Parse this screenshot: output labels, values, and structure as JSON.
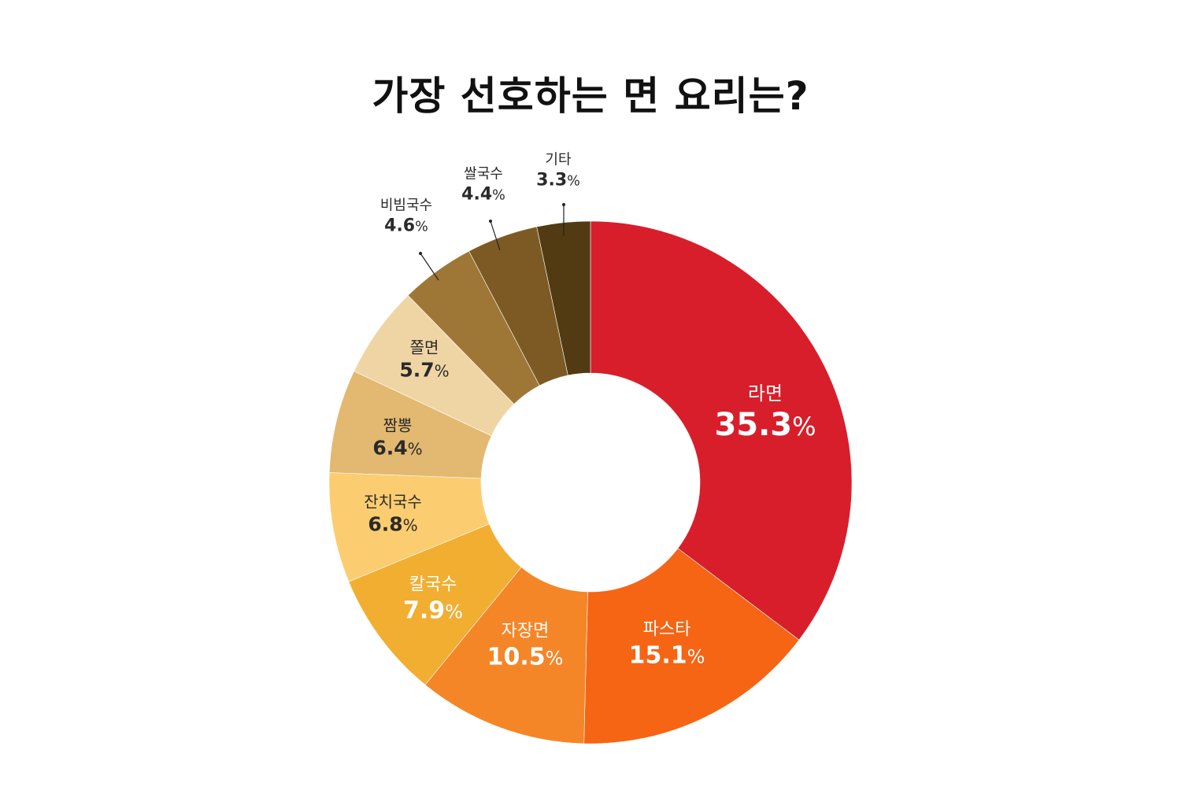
{
  "title": "가장 선호하는 면 요리는?",
  "chart_data": {
    "type": "pie",
    "subtype": "donut",
    "title": "가장 선호하는 면 요리는?",
    "unit": "%",
    "start_angle": "12 o'clock, clockwise",
    "categories": [
      "라면",
      "파스타",
      "자장면",
      "칼국수",
      "잔치국수",
      "짬뽕",
      "쫄면",
      "비빔국수",
      "쌀국수",
      "기타"
    ],
    "values": [
      35.3,
      15.1,
      10.5,
      7.9,
      6.8,
      6.4,
      5.7,
      4.6,
      4.4,
      3.3
    ],
    "colors": [
      "#d81e2a",
      "#f56514",
      "#f58628",
      "#f1ae31",
      "#fccd70",
      "#e3b870",
      "#f0d5a4",
      "#9e7737",
      "#7d5a24",
      "#523b12"
    ],
    "legend": "none (direct labels)"
  },
  "labels": [
    {
      "name": "라면",
      "value": "35.3",
      "pct": "%"
    },
    {
      "name": "파스타",
      "value": "15.1",
      "pct": "%"
    },
    {
      "name": "자장면",
      "value": "10.5",
      "pct": "%"
    },
    {
      "name": "칼국수",
      "value": "7.9",
      "pct": "%"
    },
    {
      "name": "잔치국수",
      "value": "6.8",
      "pct": "%"
    },
    {
      "name": "짬뽕",
      "value": "6.4",
      "pct": "%"
    },
    {
      "name": "쫄면",
      "value": "5.7",
      "pct": "%"
    },
    {
      "name": "비빔국수",
      "value": "4.6",
      "pct": "%"
    },
    {
      "name": "쌀국수",
      "value": "4.4",
      "pct": "%"
    },
    {
      "name": "기타",
      "value": "3.3",
      "pct": "%"
    }
  ]
}
